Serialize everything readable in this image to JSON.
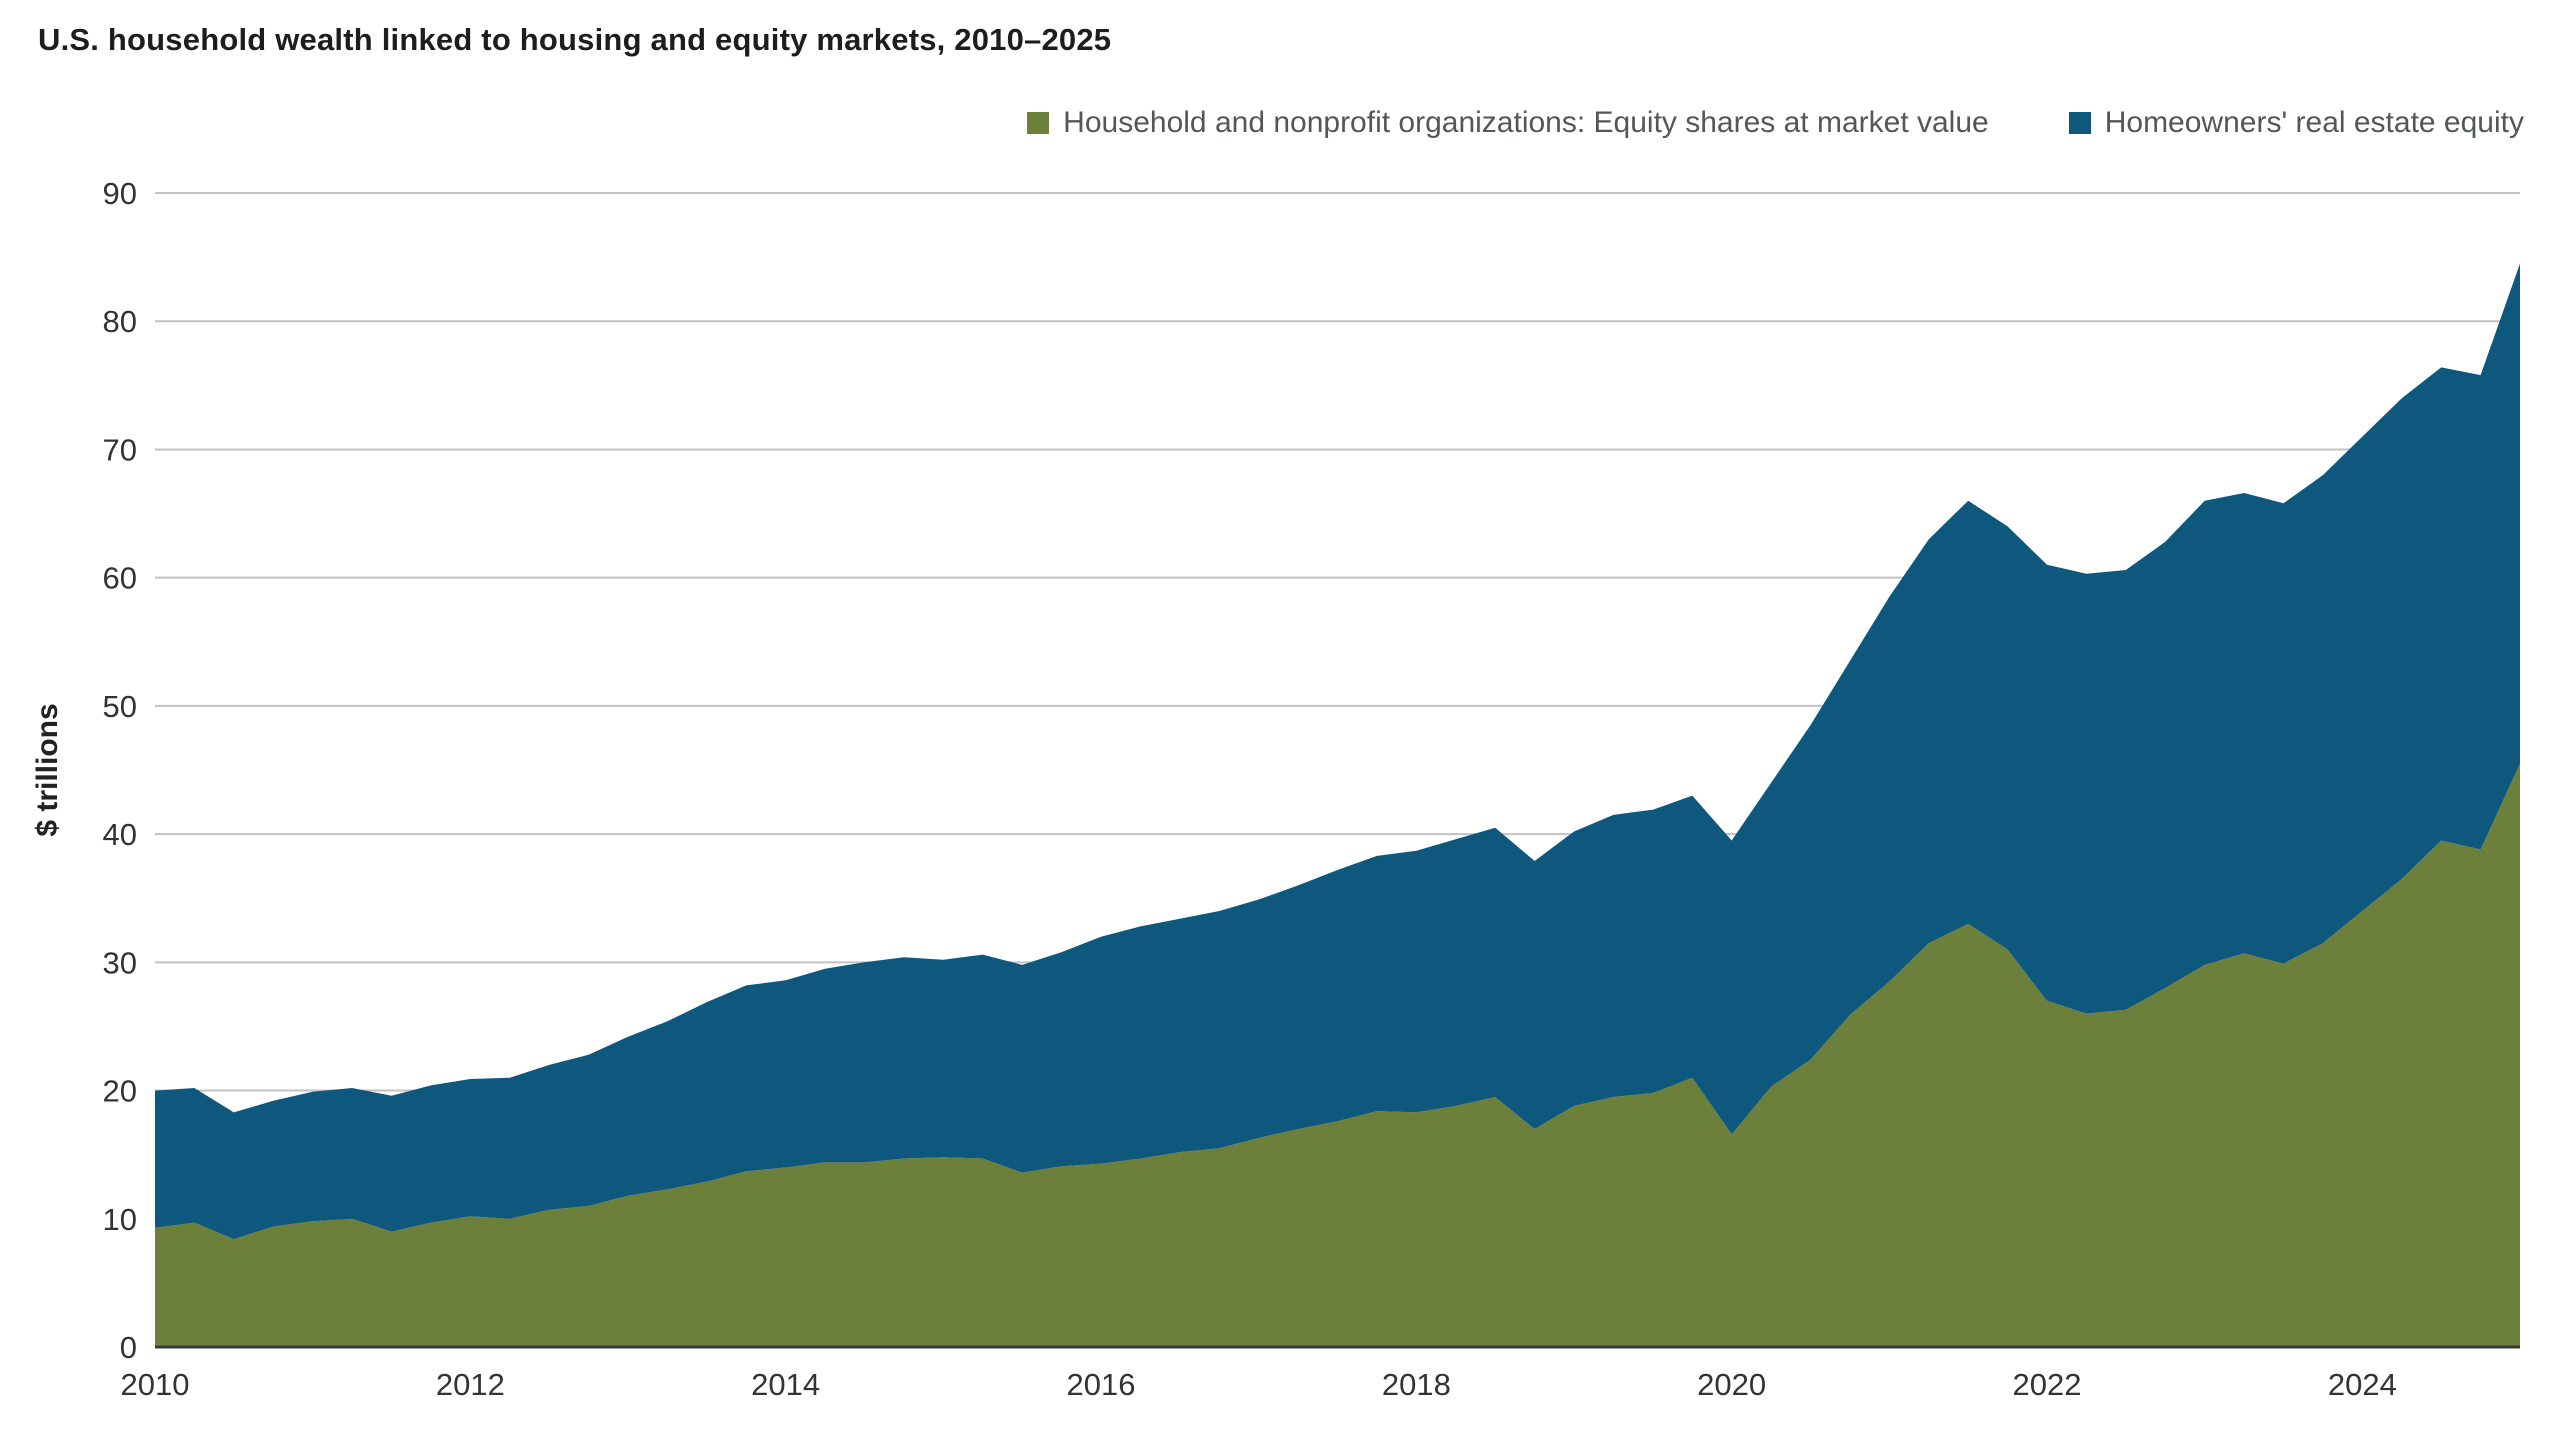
{
  "chart_data": {
    "type": "area",
    "stacked": true,
    "title": "U.S. household wealth linked to housing and equity markets, 2010–2025",
    "xlabel": "",
    "ylabel": "$ trillions",
    "xlim": [
      2010,
      2025
    ],
    "ylim": [
      0,
      90
    ],
    "x_ticks": [
      2010,
      2012,
      2014,
      2016,
      2018,
      2020,
      2022,
      2024
    ],
    "y_ticks": [
      0,
      10,
      20,
      30,
      40,
      50,
      60,
      70,
      80,
      90
    ],
    "grid": "horizontal",
    "legend_position": "top-right",
    "colors": {
      "grid": "#c2c2c2",
      "axis": "#3a3a3a",
      "tick": "#333333"
    },
    "x": [
      2010,
      2010.25,
      2010.5,
      2010.75,
      2011,
      2011.25,
      2011.5,
      2011.75,
      2012,
      2012.25,
      2012.5,
      2012.75,
      2013,
      2013.25,
      2013.5,
      2013.75,
      2014,
      2014.25,
      2014.5,
      2014.75,
      2015,
      2015.25,
      2015.5,
      2015.75,
      2016,
      2016.25,
      2016.5,
      2016.75,
      2017,
      2017.25,
      2017.5,
      2017.75,
      2018,
      2018.25,
      2018.5,
      2018.75,
      2019,
      2019.25,
      2019.5,
      2019.75,
      2020,
      2020.25,
      2020.5,
      2020.75,
      2021,
      2021.25,
      2021.5,
      2021.75,
      2022,
      2022.25,
      2022.5,
      2022.75,
      2023,
      2023.25,
      2023.5,
      2023.75,
      2024,
      2024.25,
      2024.5,
      2024.75,
      2025
    ],
    "series": [
      {
        "id": "equity-shares",
        "name": "Household and nonprofit organizations: Equity shares at market value",
        "color": "#6C803C",
        "values": [
          9.3,
          9.7,
          8.4,
          9.4,
          9.8,
          10.0,
          9.0,
          9.7,
          10.2,
          10.0,
          10.7,
          11.0,
          11.8,
          12.3,
          12.9,
          13.7,
          14.0,
          14.4,
          14.4,
          14.7,
          14.8,
          14.7,
          13.6,
          14.1,
          14.3,
          14.7,
          15.2,
          15.5,
          16.3,
          17.0,
          17.6,
          18.4,
          18.3,
          18.8,
          19.5,
          17.0,
          18.8,
          19.5,
          19.8,
          21.0,
          16.6,
          20.3,
          22.4,
          25.9,
          28.5,
          31.5,
          33.0,
          31.0,
          27.0,
          26.0,
          26.3,
          28.0,
          29.8,
          30.7,
          29.9,
          31.5,
          34.0,
          36.5,
          39.5,
          38.8,
          45.5
        ]
      },
      {
        "id": "real-estate-equity",
        "name": "Homeowners' real estate equity",
        "color": "#0E587E",
        "values": [
          10.7,
          10.5,
          9.9,
          9.8,
          10.1,
          10.2,
          10.6,
          10.7,
          10.7,
          11.0,
          11.3,
          11.8,
          12.4,
          13.1,
          14.0,
          14.5,
          14.6,
          15.1,
          15.6,
          15.7,
          15.4,
          15.9,
          16.2,
          16.7,
          17.7,
          18.1,
          18.2,
          18.5,
          18.6,
          19.0,
          19.6,
          19.9,
          20.4,
          20.8,
          21.0,
          20.9,
          21.4,
          22.0,
          22.1,
          22.0,
          22.9,
          23.7,
          26.1,
          27.6,
          30.0,
          31.5,
          33.0,
          33.0,
          34.0,
          34.3,
          34.3,
          34.8,
          36.2,
          35.9,
          35.9,
          36.5,
          37.0,
          37.5,
          36.9,
          37.0,
          39.0
        ]
      }
    ]
  }
}
